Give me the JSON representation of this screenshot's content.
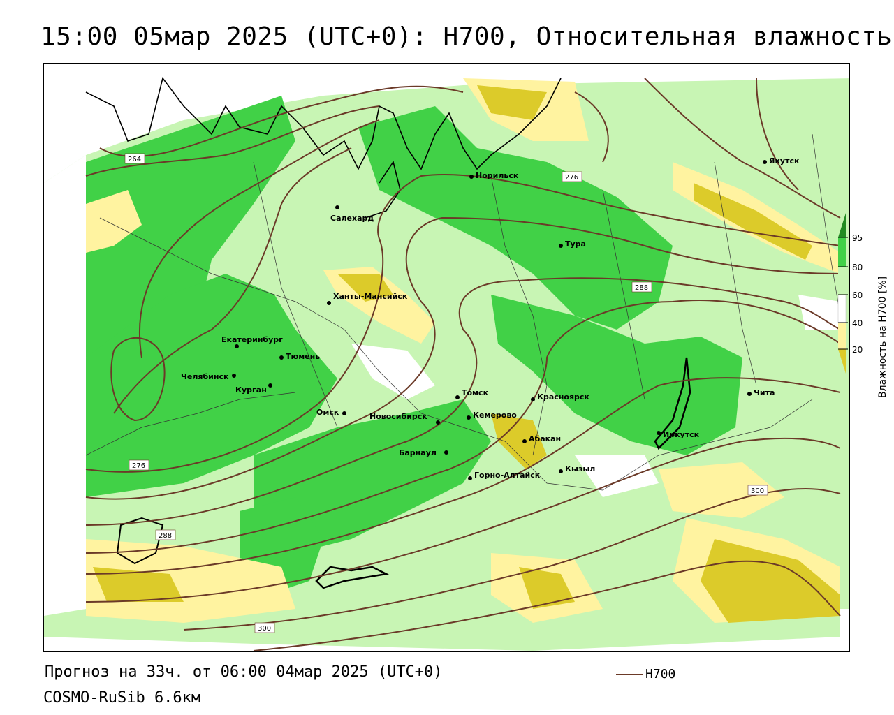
{
  "title": "15:00 05мар 2025 (UTC+0): H700, Относительная влажность",
  "footer": {
    "forecast": "Прогноз на 33ч. от 06:00 04мар 2025 (UTC+0)",
    "model": "COSMO-RuSib 6.6км",
    "legend_line_label": "H700"
  },
  "colorbar": {
    "title": "Влажность на H700 [%]",
    "ticks": [
      "95",
      "80",
      "60",
      "40",
      "20"
    ],
    "colors": {
      "c95": "#228b22",
      "c80": "#41d147",
      "c60": "#c8f5b4",
      "c40": "#ffffff",
      "c20": "#fff3a0",
      "c0": "#dccb2a"
    }
  },
  "colors": {
    "contour": "#6b3a28",
    "coast": "#000000",
    "border": "#000000"
  },
  "contour_labels": [
    "264",
    "276",
    "276",
    "288",
    "288",
    "300",
    "300"
  ],
  "cities": [
    {
      "name": "Норильск"
    },
    {
      "name": "Якутск"
    },
    {
      "name": "Салехард"
    },
    {
      "name": "Тура"
    },
    {
      "name": "Ханты-Мансийск"
    },
    {
      "name": "Екатеринбург"
    },
    {
      "name": "Тюмень"
    },
    {
      "name": "Челябинск"
    },
    {
      "name": "Курган"
    },
    {
      "name": "Омск"
    },
    {
      "name": "Новосибирск"
    },
    {
      "name": "Томск"
    },
    {
      "name": "Кемерово"
    },
    {
      "name": "Красноярск"
    },
    {
      "name": "Абакан"
    },
    {
      "name": "Барнаул"
    },
    {
      "name": "Горно-Алтайск"
    },
    {
      "name": "Кызыл"
    },
    {
      "name": "Иркутск"
    },
    {
      "name": "Чита"
    }
  ]
}
